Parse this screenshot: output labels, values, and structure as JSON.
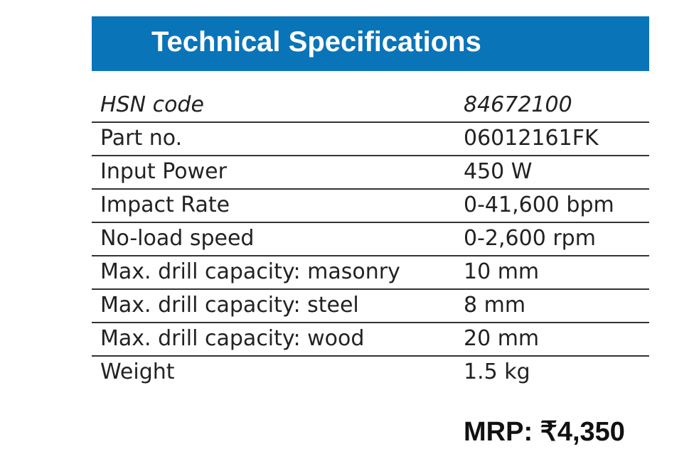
{
  "header": {
    "title": "Technical Specifications"
  },
  "table": {
    "rows": [
      [
        "HSN code",
        "84672100"
      ],
      [
        "Part no.",
        "06012161FK"
      ],
      [
        "Input Power",
        "450 W"
      ],
      [
        "Impact Rate",
        "0-41,600 bpm"
      ],
      [
        "No-load speed",
        "0-2,600 rpm"
      ],
      [
        "Max. drill capacity: masonry",
        "10 mm"
      ],
      [
        "Max. drill capacity: steel",
        "8 mm"
      ],
      [
        "Max. drill capacity: wood",
        "20 mm"
      ],
      [
        "Weight",
        "1.5 kg"
      ]
    ]
  },
  "price": "MRP: ₹4,350"
}
